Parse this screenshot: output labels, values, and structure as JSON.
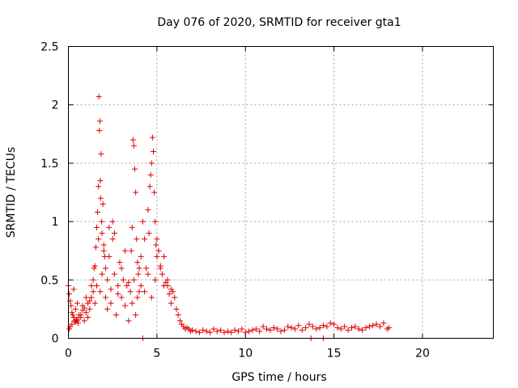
{
  "chart_data": {
    "type": "scatter",
    "title": "Day 076 of 2020, SRMTID for receiver gta1",
    "xlabel": "GPS time / hours",
    "ylabel": "SRMTID / TECUs",
    "xlim": [
      0,
      24
    ],
    "ylim": [
      0,
      2.5
    ],
    "x_ticks": [
      0,
      5,
      10,
      15,
      20
    ],
    "x_tick_labels": [
      "0",
      "5",
      "10",
      "15",
      "20"
    ],
    "y_ticks": [
      0,
      0.5,
      1,
      1.5,
      2,
      2.5
    ],
    "y_tick_labels": [
      "0",
      "0.5",
      "1",
      "1.5",
      "2",
      "2.5"
    ],
    "grid": true,
    "marker": "+",
    "series": [
      {
        "name": "SRMTID",
        "color": "#e00000",
        "x": [
          0.0,
          0.05,
          0.1,
          0.15,
          0.2,
          0.25,
          0.3,
          0.35,
          0.4,
          0.45,
          0.5,
          0.55,
          0.6,
          0.7,
          0.8,
          0.9,
          1.0,
          1.1,
          1.2,
          1.3,
          1.4,
          0.05,
          0.1,
          0.2,
          0.3,
          0.4,
          0.5,
          0.6,
          0.7,
          0.8,
          0.9,
          1.0,
          1.1,
          1.2,
          1.3,
          1.4,
          1.45,
          1.5,
          1.55,
          1.6,
          1.65,
          1.7,
          1.72,
          1.75,
          1.78,
          1.8,
          1.82,
          1.85,
          1.88,
          1.9,
          1.95,
          2.0,
          2.05,
          2.1,
          1.5,
          1.6,
          1.7,
          1.8,
          1.9,
          2.0,
          2.1,
          2.2,
          2.3,
          2.4,
          2.5,
          2.2,
          2.3,
          2.4,
          2.5,
          2.6,
          2.7,
          2.8,
          2.9,
          3.0,
          3.1,
          3.2,
          3.3,
          3.4,
          2.6,
          2.8,
          3.0,
          3.2,
          3.4,
          3.5,
          3.55,
          3.6,
          3.65,
          3.7,
          3.75,
          3.8,
          3.85,
          3.9,
          3.95,
          4.0,
          3.6,
          3.7,
          3.8,
          3.9,
          4.0,
          4.1,
          4.1,
          4.2,
          4.3,
          4.4,
          4.5,
          4.55,
          4.6,
          4.65,
          4.7,
          4.75,
          4.8,
          4.85,
          4.9,
          4.95,
          5.0,
          4.3,
          4.5,
          4.7,
          4.9,
          5.0,
          5.1,
          5.2,
          5.3,
          5.4,
          5.5,
          5.6,
          5.7,
          5.8,
          5.9,
          6.0,
          6.1,
          5.2,
          5.4,
          5.6,
          5.8,
          6.2,
          6.3,
          6.4,
          6.5,
          6.6,
          6.7,
          6.8,
          6.9,
          7.0,
          7.2,
          7.4,
          7.6,
          7.8,
          8.0,
          8.2,
          8.4,
          8.6,
          8.8,
          9.0,
          9.2,
          9.4,
          9.6,
          9.8,
          10.0,
          10.2,
          10.4,
          10.6,
          10.8,
          11.0,
          11.2,
          11.4,
          11.6,
          11.8,
          12.0,
          12.2,
          12.4,
          12.6,
          12.8,
          13.0,
          13.2,
          13.4,
          13.6,
          13.8,
          14.0,
          14.2,
          14.4,
          14.6,
          14.8,
          15.0,
          15.2,
          15.4,
          15.6,
          15.8,
          16.0,
          16.2,
          16.4,
          16.6,
          16.8,
          17.0,
          17.2,
          17.4,
          17.6,
          17.8,
          18.0,
          18.1,
          4.2,
          13.7,
          14.4
        ],
        "y": [
          0.45,
          0.38,
          0.32,
          0.28,
          0.22,
          0.2,
          0.18,
          0.15,
          0.14,
          0.16,
          0.15,
          0.13,
          0.18,
          0.2,
          0.24,
          0.26,
          0.22,
          0.3,
          0.32,
          0.35,
          0.4,
          0.08,
          0.1,
          0.12,
          0.42,
          0.25,
          0.3,
          0.2,
          0.18,
          0.28,
          0.15,
          0.35,
          0.18,
          0.25,
          0.45,
          0.5,
          0.6,
          0.62,
          0.78,
          0.95,
          1.08,
          1.3,
          2.07,
          1.78,
          1.86,
          1.35,
          1.2,
          1.58,
          1.0,
          0.9,
          1.15,
          0.8,
          0.7,
          0.6,
          0.3,
          0.45,
          0.85,
          0.4,
          0.55,
          0.75,
          0.35,
          0.5,
          0.95,
          0.42,
          1.0,
          0.25,
          0.7,
          0.3,
          0.85,
          0.55,
          0.2,
          0.45,
          0.65,
          0.35,
          0.5,
          0.28,
          0.45,
          0.15,
          0.9,
          0.38,
          0.6,
          0.75,
          0.48,
          0.4,
          0.75,
          0.95,
          1.7,
          1.65,
          1.45,
          1.25,
          0.85,
          0.65,
          0.55,
          0.4,
          0.3,
          0.5,
          0.2,
          0.35,
          0.6,
          0.45,
          0.7,
          1.0,
          0.85,
          0.6,
          1.1,
          0.9,
          1.3,
          1.4,
          1.5,
          1.72,
          1.6,
          1.25,
          1.0,
          0.8,
          0.7,
          0.4,
          0.55,
          0.35,
          0.5,
          0.85,
          0.75,
          0.62,
          0.55,
          0.7,
          0.48,
          0.45,
          0.38,
          0.42,
          0.4,
          0.35,
          0.25,
          0.6,
          0.45,
          0.5,
          0.3,
          0.2,
          0.15,
          0.12,
          0.1,
          0.08,
          0.09,
          0.08,
          0.06,
          0.07,
          0.06,
          0.05,
          0.07,
          0.06,
          0.05,
          0.08,
          0.06,
          0.07,
          0.05,
          0.06,
          0.05,
          0.07,
          0.06,
          0.08,
          0.05,
          0.06,
          0.07,
          0.08,
          0.06,
          0.1,
          0.08,
          0.07,
          0.09,
          0.08,
          0.06,
          0.07,
          0.1,
          0.09,
          0.08,
          0.11,
          0.07,
          0.09,
          0.12,
          0.1,
          0.08,
          0.09,
          0.11,
          0.1,
          0.13,
          0.12,
          0.09,
          0.08,
          0.1,
          0.07,
          0.09,
          0.1,
          0.08,
          0.07,
          0.09,
          0.1,
          0.11,
          0.12,
          0.1,
          0.13,
          0.08,
          0.09,
          0.0,
          0.0,
          0.0
        ]
      }
    ]
  }
}
